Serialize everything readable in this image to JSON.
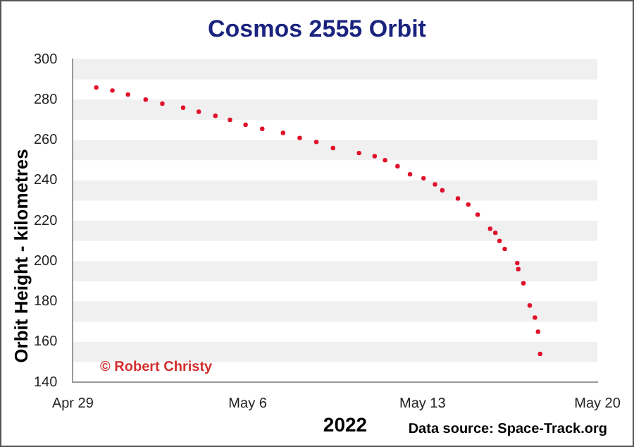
{
  "chart_data": {
    "type": "scatter",
    "title": "Cosmos 2555 Orbit",
    "xlabel": "2022",
    "ylabel": "Orbit Height - kilometres",
    "x": [
      "2022-04-29T22:30",
      "2022-04-30T14:00",
      "2022-05-01T05:00",
      "2022-05-01T22:00",
      "2022-05-02T14:00",
      "2022-05-03T10:00",
      "2022-05-04T01:00",
      "2022-05-04T17:00",
      "2022-05-05T07:00",
      "2022-05-05T22:00",
      "2022-05-06T14:00",
      "2022-05-07T10:00",
      "2022-05-08T02:00",
      "2022-05-08T18:00",
      "2022-05-09T10:00",
      "2022-05-10T11:00",
      "2022-05-11T02:00",
      "2022-05-11T12:00",
      "2022-05-12T00:00",
      "2022-05-12T12:00",
      "2022-05-13T01:00",
      "2022-05-13T12:00",
      "2022-05-13T19:00",
      "2022-05-14T10:00",
      "2022-05-14T20:00",
      "2022-05-15T05:00",
      "2022-05-15T17:00",
      "2022-05-15T22:00",
      "2022-05-16T02:00",
      "2022-05-16T07:00",
      "2022-05-16T19:00",
      "2022-05-16T20:00",
      "2022-05-17T01:00",
      "2022-05-17T07:00",
      "2022-05-17T12:00",
      "2022-05-17T15:00",
      "2022-05-17T17:00"
    ],
    "series": [
      {
        "color": "#e0102a",
        "values": [
          286,
          284.5,
          282.5,
          280,
          278,
          276,
          274,
          272,
          270,
          267.5,
          265.5,
          263.5,
          261,
          259,
          256,
          253.5,
          252,
          250,
          247,
          243,
          241,
          238,
          235,
          231,
          228,
          223,
          216,
          214,
          210,
          206,
          199,
          196,
          189,
          178,
          172,
          165,
          154
        ]
      }
    ],
    "xlim": [
      "2022-04-29",
      "2022-05-20"
    ],
    "xticks": [
      {
        "value": "2022-04-29",
        "label": "Apr 29"
      },
      {
        "value": "2022-05-06",
        "label": "May 6"
      },
      {
        "value": "2022-05-13",
        "label": "May 13"
      },
      {
        "value": "2022-05-20",
        "label": "May 20"
      }
    ],
    "ylim": [
      140,
      300
    ],
    "yticks": [
      140,
      160,
      180,
      200,
      220,
      240,
      260,
      280,
      300
    ],
    "bands": [
      {
        "axis": "y",
        "from": 150,
        "to": 160,
        "color": "#f0f0f0"
      },
      {
        "axis": "y",
        "from": 170,
        "to": 180,
        "color": "#f0f0f0"
      },
      {
        "axis": "y",
        "from": 190,
        "to": 200,
        "color": "#f0f0f0"
      },
      {
        "axis": "y",
        "from": 210,
        "to": 220,
        "color": "#f0f0f0"
      },
      {
        "axis": "y",
        "from": 230,
        "to": 240,
        "color": "#f0f0f0"
      },
      {
        "axis": "y",
        "from": 250,
        "to": 260,
        "color": "#f0f0f0"
      },
      {
        "axis": "y",
        "from": 270,
        "to": 280,
        "color": "#f0f0f0"
      },
      {
        "axis": "y",
        "from": 290,
        "to": 300,
        "color": "#f0f0f0"
      }
    ],
    "legend": false,
    "marker": "circle",
    "annotations": [
      "© Robert Christy",
      "Data source: Space-Track.org"
    ]
  }
}
